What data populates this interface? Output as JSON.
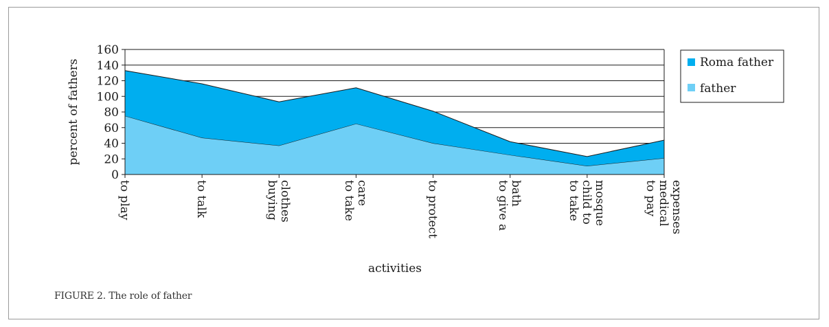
{
  "caption": "FIGURE 2. The role of father",
  "chart_data": {
    "type": "area",
    "stacked": true,
    "categories": [
      "to play",
      "to talk",
      "buying clothes",
      "to take care",
      "to protect",
      "to give a bath",
      "to take child to mosque",
      "to pay medical expenses"
    ],
    "category_label_lines": [
      [
        "to play"
      ],
      [
        "to talk"
      ],
      [
        "buying",
        "clothes"
      ],
      [
        "to take",
        "care"
      ],
      [
        "to protect"
      ],
      [
        "to give a",
        "bath"
      ],
      [
        "to take",
        "child to",
        "mosque"
      ],
      [
        "to pay",
        "medical",
        "expenses"
      ]
    ],
    "series": [
      {
        "name": "father",
        "values": [
          75,
          47,
          37,
          65,
          40,
          25,
          11,
          21
        ],
        "color": "#6ecff6"
      },
      {
        "name": "Roma father",
        "values": [
          58,
          69,
          56,
          46,
          41,
          17,
          12,
          23
        ],
        "color": "#00aeef"
      }
    ],
    "xlabel": "activities",
    "ylabel": "percent of fathers",
    "ylim": [
      0,
      160
    ],
    "yticks": [
      0,
      20,
      40,
      60,
      80,
      100,
      120,
      140,
      160
    ],
    "grid": true,
    "legend_position": "right",
    "legend_entries": [
      "Roma father",
      "father"
    ]
  }
}
